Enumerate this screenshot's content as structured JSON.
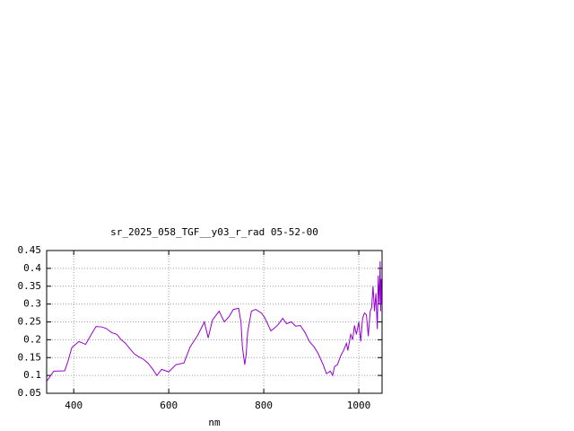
{
  "chart_data": {
    "type": "line",
    "title": "sr_2025_058_TGF__y03_r_rad 05-52-00",
    "x_label": "nm",
    "x": [
      344,
      358,
      381,
      388,
      396,
      411,
      425,
      437,
      447,
      458,
      468,
      480,
      491,
      500,
      509,
      518,
      528,
      537,
      547,
      556,
      566,
      575,
      585,
      600,
      615,
      632,
      645,
      660,
      675,
      683,
      692,
      706,
      717,
      727,
      736,
      747,
      752,
      755,
      760,
      763,
      766,
      774,
      783,
      795,
      802,
      815,
      822,
      830,
      840,
      848,
      858,
      867,
      877,
      887,
      896,
      906,
      915,
      925,
      932,
      940,
      945,
      949,
      955,
      962,
      968,
      974,
      977,
      983,
      987,
      991,
      995,
      1000,
      1004,
      1008,
      1012,
      1016,
      1020,
      1024,
      1027,
      1030,
      1033,
      1036,
      1039,
      1041,
      1043,
      1045,
      1046,
      1047,
      1048
    ],
    "values": [
      0.085,
      0.112,
      0.113,
      0.14,
      0.178,
      0.195,
      0.187,
      0.215,
      0.237,
      0.236,
      0.232,
      0.22,
      0.215,
      0.2,
      0.19,
      0.175,
      0.16,
      0.152,
      0.145,
      0.135,
      0.118,
      0.1,
      0.117,
      0.11,
      0.13,
      0.135,
      0.18,
      0.21,
      0.25,
      0.205,
      0.255,
      0.28,
      0.25,
      0.265,
      0.285,
      0.288,
      0.25,
      0.18,
      0.13,
      0.16,
      0.22,
      0.28,
      0.285,
      0.275,
      0.262,
      0.225,
      0.232,
      0.242,
      0.26,
      0.245,
      0.25,
      0.238,
      0.24,
      0.22,
      0.195,
      0.18,
      0.16,
      0.13,
      0.105,
      0.112,
      0.1,
      0.125,
      0.13,
      0.155,
      0.17,
      0.19,
      0.17,
      0.215,
      0.2,
      0.24,
      0.215,
      0.25,
      0.195,
      0.26,
      0.275,
      0.27,
      0.21,
      0.28,
      0.29,
      0.35,
      0.28,
      0.33,
      0.23,
      0.38,
      0.3,
      0.42,
      0.28,
      0.37,
      0.3
    ],
    "color": "#9400d3",
    "xlim": [
      343,
      1049
    ],
    "xticks": [
      400,
      600,
      800,
      1000
    ],
    "ylim": [
      0.05,
      0.45
    ],
    "yticks": [
      0.05,
      0.1,
      0.15,
      0.2,
      0.25,
      0.3,
      0.35,
      0.4,
      0.45
    ],
    "grid": true
  }
}
